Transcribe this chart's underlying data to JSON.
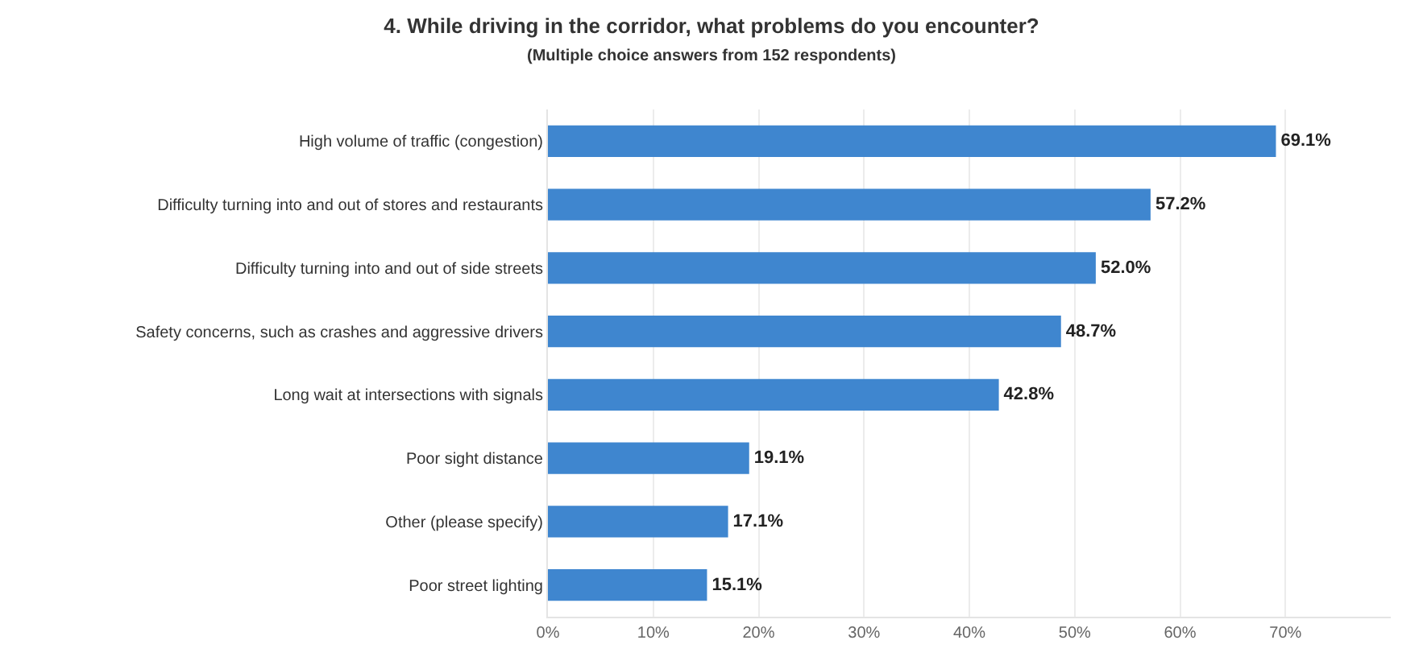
{
  "chart_data": {
    "type": "bar",
    "orientation": "horizontal",
    "title": "4. While driving in the corridor, what problems do you encounter?",
    "subtitle": "(Multiple choice answers from 152 respondents)",
    "categories": [
      "High volume of traffic (congestion)",
      "Difficulty turning into and out of stores and restaurants",
      "Difficulty turning into and out of side streets",
      "Safety concerns, such as crashes and aggressive drivers",
      "Long wait at intersections with signals",
      "Poor sight distance",
      "Other (please specify)",
      "Poor street lighting"
    ],
    "values": [
      69.1,
      57.2,
      52.0,
      48.7,
      42.8,
      19.1,
      17.1,
      15.1
    ],
    "value_labels": [
      "69.1%",
      "57.2%",
      "52.0%",
      "48.7%",
      "42.8%",
      "19.1%",
      "17.1%",
      "15.1%"
    ],
    "color": "#3f86cf",
    "xlim": [
      0,
      80
    ],
    "xticks": [
      {
        "value": 0,
        "label": "0%"
      },
      {
        "value": 10,
        "label": "10%"
      },
      {
        "value": 20,
        "label": "20%"
      },
      {
        "value": 30,
        "label": "30%"
      },
      {
        "value": 40,
        "label": "40%"
      },
      {
        "value": 50,
        "label": "50%"
      },
      {
        "value": 60,
        "label": "60%"
      },
      {
        "value": 70,
        "label": "70%"
      }
    ],
    "grid": "x"
  }
}
